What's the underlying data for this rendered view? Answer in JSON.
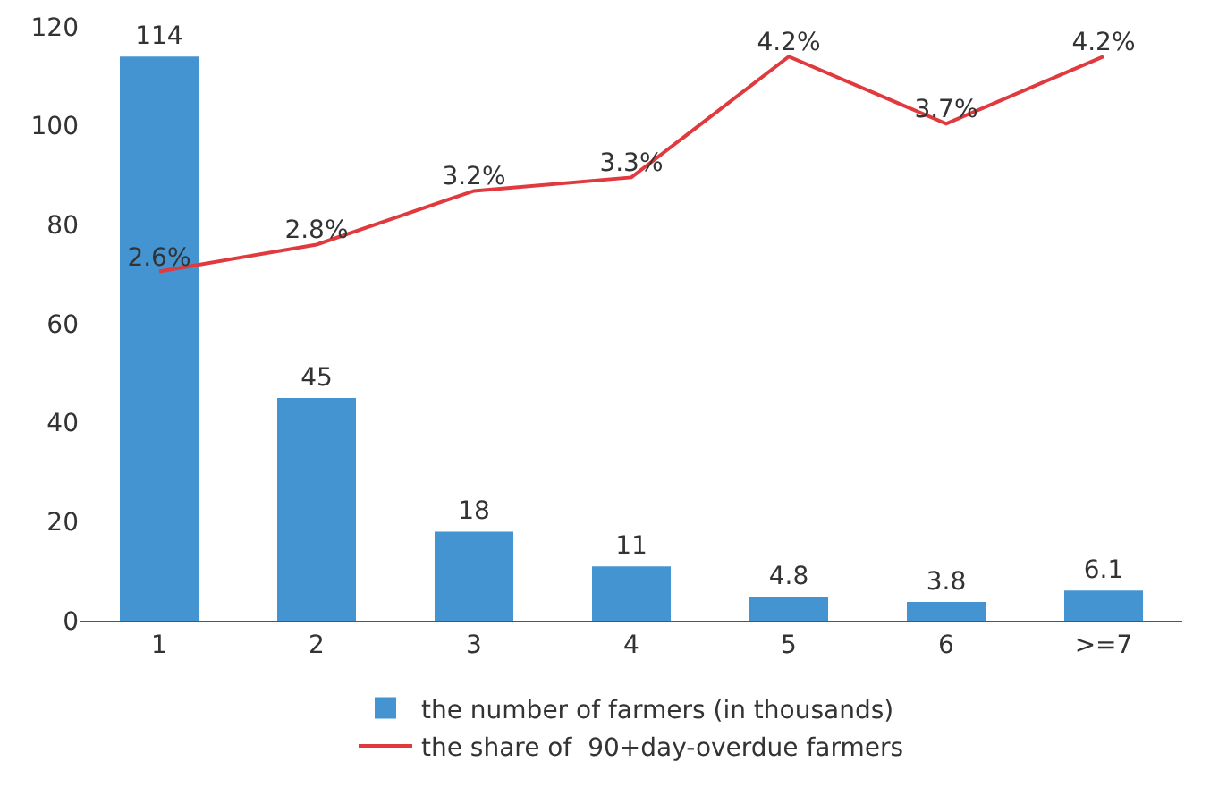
{
  "chart_data": {
    "type": "bar",
    "categories": [
      "1",
      "2",
      "3",
      "4",
      "5",
      "6",
      ">=7"
    ],
    "series": [
      {
        "name": "the number of farmers (in thousands)",
        "color": "#4394d0",
        "values": [
          114,
          45,
          18,
          11,
          4.8,
          3.8,
          6.1
        ],
        "value_labels": [
          "114",
          "45",
          "18",
          "11",
          "4.8",
          "3.8",
          "6.1"
        ]
      },
      {
        "name": "the share of  90+day-overdue farmers",
        "type": "line",
        "axis": "y2",
        "color": "#e03a3e",
        "values": [
          2.6,
          2.8,
          3.2,
          3.3,
          4.2,
          3.7,
          4.2
        ],
        "value_labels": [
          "2.6%",
          "2.8%",
          "3.2%",
          "3.3%",
          "4.2%",
          "3.7%",
          "4.2%"
        ]
      }
    ],
    "ylim": [
      0,
      120
    ],
    "yticks": [
      0,
      20,
      40,
      60,
      80,
      100,
      120
    ],
    "tick_labels": "x,y",
    "grid": false,
    "legend": "bottom",
    "marker": "none",
    "line_style": "solid"
  }
}
